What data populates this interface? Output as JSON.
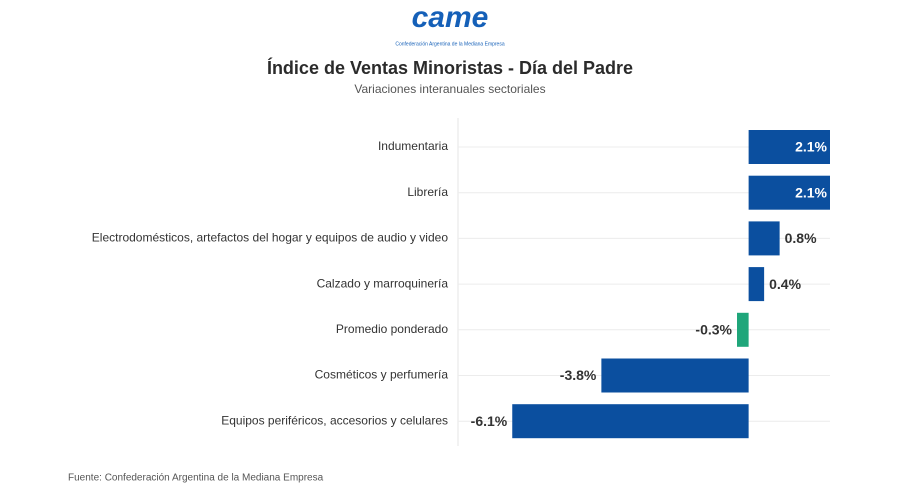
{
  "logo": {
    "name": "came",
    "tagline": "Confederación Argentina de la Mediana Empresa"
  },
  "chart_data": {
    "type": "hbar",
    "title": "Índice de Ventas Minoristas - Día del Padre",
    "subtitle": "Variaciones interanuales sectoriales",
    "categories": [
      "Indumentaria",
      "Librería",
      "Electrodomésticos, artefactos del hogar y equipos de audio y video",
      "Calzado y marroquinería",
      "Promedio ponderado",
      "Cosméticos y perfumería",
      "Equipos periféricos, accesorios y celulares"
    ],
    "values": [
      2.1,
      2.1,
      0.8,
      0.4,
      -0.3,
      -3.8,
      -6.1
    ],
    "value_labels": [
      "2.1%",
      "2.1%",
      "0.8%",
      "0.4%",
      "-0.3%",
      "-3.8%",
      "-6.1%"
    ],
    "colors": [
      "#0b4f9f",
      "#0b4f9f",
      "#0b4f9f",
      "#0b4f9f",
      "#1fa67a",
      "#0b4f9f",
      "#0b4f9f"
    ],
    "xlim": [
      -7.5,
      2.1
    ],
    "source": "Fuente: Confederación Argentina de la Mediana Empresa"
  }
}
